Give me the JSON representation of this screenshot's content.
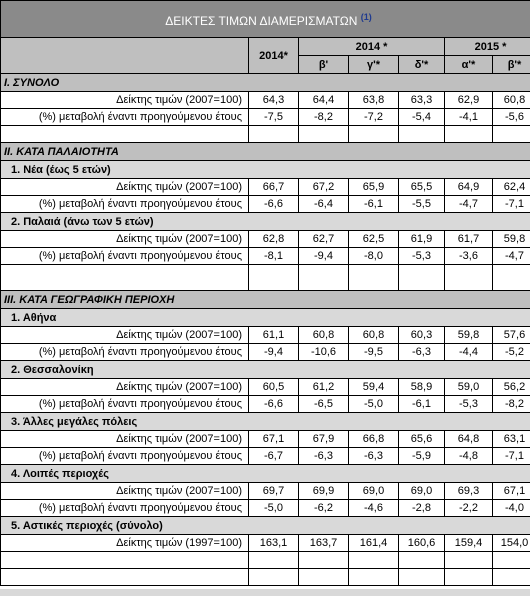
{
  "title": "ΔΕΙΚΤΕΣ ΤΙΜΩΝ ΔΙΑΜΕΡΙΣΜΑΤΩΝ",
  "title_sup": "(1)",
  "headers": {
    "y2014": "2014*",
    "y2014q": "2014 *",
    "y2015q": "2015 *",
    "quarters": [
      "β'",
      "γ'*",
      "δ'*",
      "α'*",
      "β'*"
    ]
  },
  "sections": [
    {
      "title": "I. ΣΥΝΟΛΟ",
      "groups": [
        {
          "rows": [
            {
              "label": "Δείκτης τιμών (2007=100)",
              "values": [
                "64,3",
                "64,4",
                "63,8",
                "63,3",
                "62,9",
                "60,8"
              ]
            },
            {
              "label": "(%) μεταβολή έναντι προηγούμενου έτους",
              "values": [
                "-7,5",
                "-8,2",
                "-7,2",
                "-5,4",
                "-4,1",
                "-5,6"
              ]
            }
          ]
        }
      ]
    },
    {
      "title": "II. ΚΑΤΑ ΠΑΛΑΙΟΤΗΤΑ",
      "groups": [
        {
          "name": "1.  Νέα (έως 5 ετών)",
          "rows": [
            {
              "label": "Δείκτης τιμών (2007=100)",
              "values": [
                "66,7",
                "67,2",
                "65,9",
                "65,5",
                "64,9",
                "62,4"
              ]
            },
            {
              "label": "(%) μεταβολή έναντι προηγούμενου έτους",
              "values": [
                "-6,6",
                "-6,4",
                "-6,1",
                "-5,5",
                "-4,7",
                "-7,1"
              ]
            }
          ]
        },
        {
          "name": "2.  Παλαιά (άνω των 5 ετών)",
          "rows": [
            {
              "label": "Δείκτης τιμών (2007=100)",
              "values": [
                "62,8",
                "62,7",
                "62,5",
                "61,9",
                "61,7",
                "59,8"
              ]
            },
            {
              "label": "(%) μεταβολή έναντι προηγούμενου έτους",
              "values": [
                "-8,1",
                "-9,4",
                "-8,0",
                "-5,3",
                "-3,6",
                "-4,7"
              ]
            }
          ]
        }
      ]
    },
    {
      "title": "III. ΚΑΤΑ ΓΕΩΓΡΑΦΙΚΗ ΠΕΡΙΟΧΗ",
      "groups": [
        {
          "name": "1.  Αθήνα",
          "rows": [
            {
              "label": "Δείκτης τιμών (2007=100)",
              "values": [
                "61,1",
                "60,8",
                "60,8",
                "60,3",
                "59,8",
                "57,6"
              ]
            },
            {
              "label": "(%) μεταβολή έναντι προηγούμενου έτους",
              "values": [
                "-9,4",
                "-10,6",
                "-9,5",
                "-6,3",
                "-4,4",
                "-5,2"
              ]
            }
          ]
        },
        {
          "name": "2.  Θεσσαλονίκη",
          "rows": [
            {
              "label": "Δείκτης τιμών (2007=100)",
              "values": [
                "60,5",
                "61,2",
                "59,4",
                "58,9",
                "59,0",
                "56,2"
              ]
            },
            {
              "label": "(%) μεταβολή έναντι προηγούμενου έτους",
              "values": [
                "-6,6",
                "-6,5",
                "-5,0",
                "-6,1",
                "-5,3",
                "-8,2"
              ]
            }
          ]
        },
        {
          "name": "3.  Άλλες μεγάλες πόλεις",
          "rows": [
            {
              "label": "Δείκτης τιμών (2007=100)",
              "values": [
                "67,1",
                "67,9",
                "66,8",
                "65,6",
                "64,8",
                "63,1"
              ]
            },
            {
              "label": "(%) μεταβολή έναντι προηγούμενου έτους",
              "values": [
                "-6,7",
                "-6,3",
                "-6,3",
                "-5,9",
                "-4,8",
                "-7,1"
              ]
            }
          ]
        },
        {
          "name": "4.  Λοιπές περιοχές",
          "rows": [
            {
              "label": "Δείκτης τιμών (2007=100)",
              "values": [
                "69,7",
                "69,9",
                "69,0",
                "69,0",
                "69,3",
                "67,1"
              ]
            },
            {
              "label": "(%) μεταβολή έναντι προηγούμενου έτους",
              "values": [
                "-5,0",
                "-6,2",
                "-4,6",
                "-2,8",
                "-2,2",
                "-4,0"
              ]
            }
          ]
        },
        {
          "name": "5.  Αστικές περιοχές (σύνολο)",
          "rows": [
            {
              "label": "Δείκτης τιμών (1997=100)",
              "values": [
                "163,1",
                "163,7",
                "161,4",
                "160,6",
                "159,4",
                "154,0"
              ]
            }
          ]
        }
      ]
    }
  ]
}
